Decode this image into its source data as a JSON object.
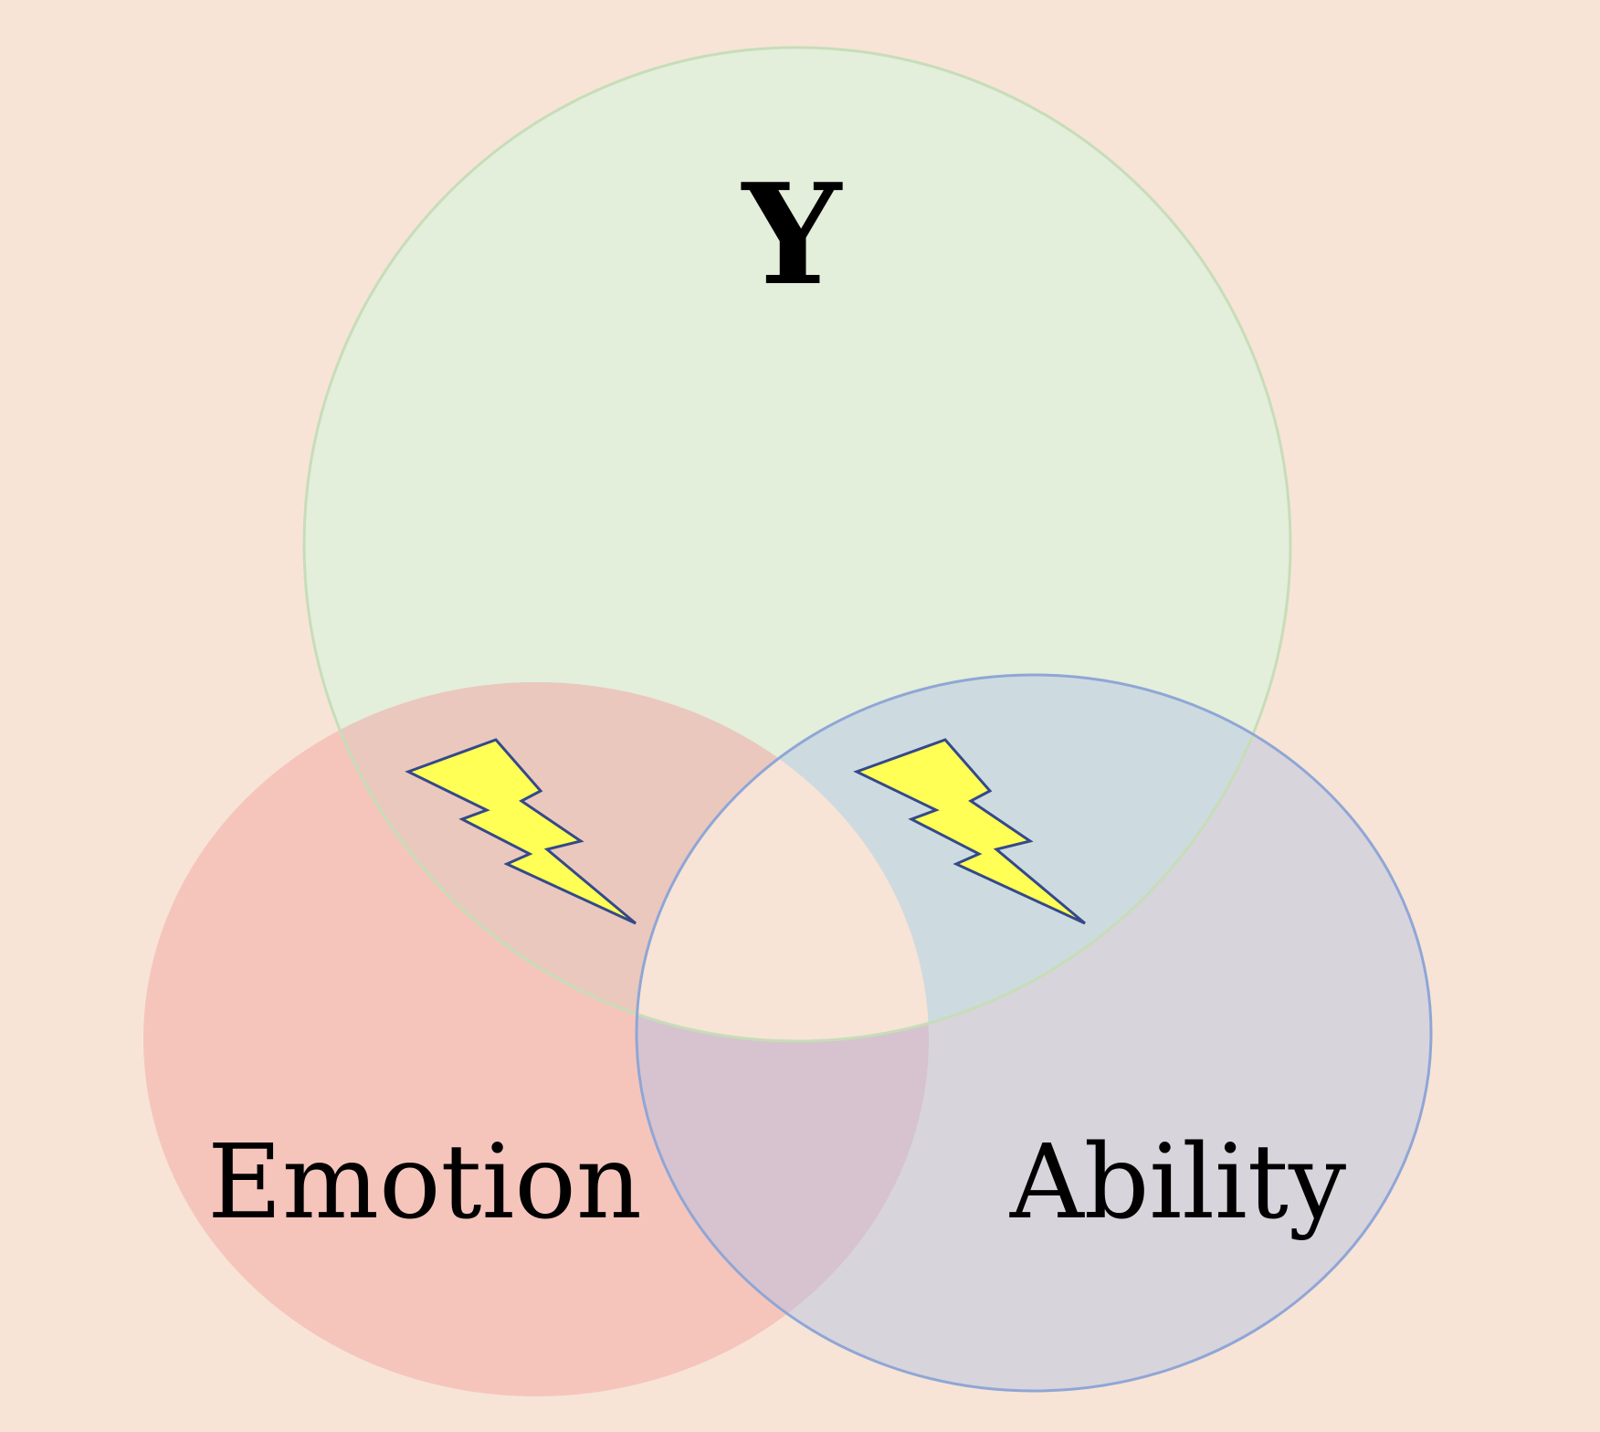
{
  "diagram": {
    "type": "venn",
    "sets": [
      {
        "id": "top",
        "label": "Y"
      },
      {
        "id": "left",
        "label": "Emotion"
      },
      {
        "id": "right",
        "label": "Ability"
      }
    ],
    "overlap_markers": [
      {
        "between": [
          "top",
          "left"
        ],
        "icon": "lightning-bolt-icon"
      },
      {
        "between": [
          "top",
          "right"
        ],
        "icon": "lightning-bolt-icon"
      }
    ]
  },
  "colors": {
    "background": "#f7e4d7",
    "top_fill": "#e3eedb",
    "top_stroke": "#c7ddb8",
    "left_fill": "#f5c5bc",
    "right_fill": "#d7d4dc",
    "right_stroke": "#8fa6d6",
    "top_left_overlap": "#eac8bd",
    "top_right_overlap": "#cddbe0",
    "left_right_overlap": "#d6c3cf",
    "bolt_fill": "#ffff55",
    "bolt_stroke": "#34498a"
  }
}
